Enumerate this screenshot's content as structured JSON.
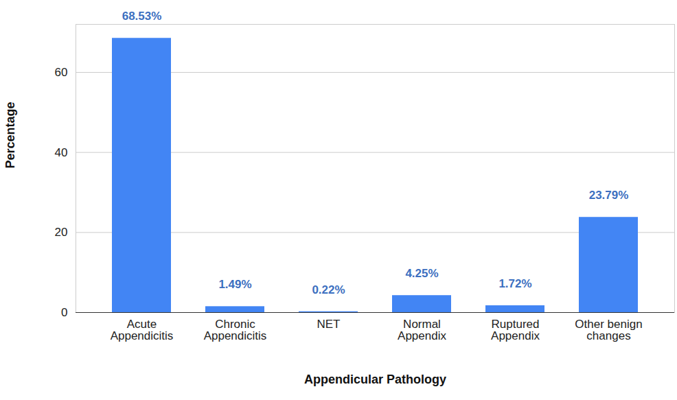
{
  "chart_data": {
    "type": "bar",
    "x_label": "Appendicular Pathology",
    "y_label": "Percentage",
    "categories": [
      "Acute Appendicitis",
      "Chronic Appendicitis",
      "NET",
      "Normal Appendix",
      "Ruptured Appendix",
      "Other benign changes"
    ],
    "values": [
      68.53,
      1.49,
      0.22,
      4.25,
      1.72,
      23.79
    ],
    "value_labels": [
      "68.53%",
      "1.49%",
      "0.22%",
      "4.25%",
      "1.72%",
      "23.79%"
    ],
    "color": "#4285f4",
    "ylim": [
      0,
      72
    ],
    "yticks": [
      0,
      20,
      40,
      60
    ],
    "grid": true,
    "data_labels": true
  }
}
